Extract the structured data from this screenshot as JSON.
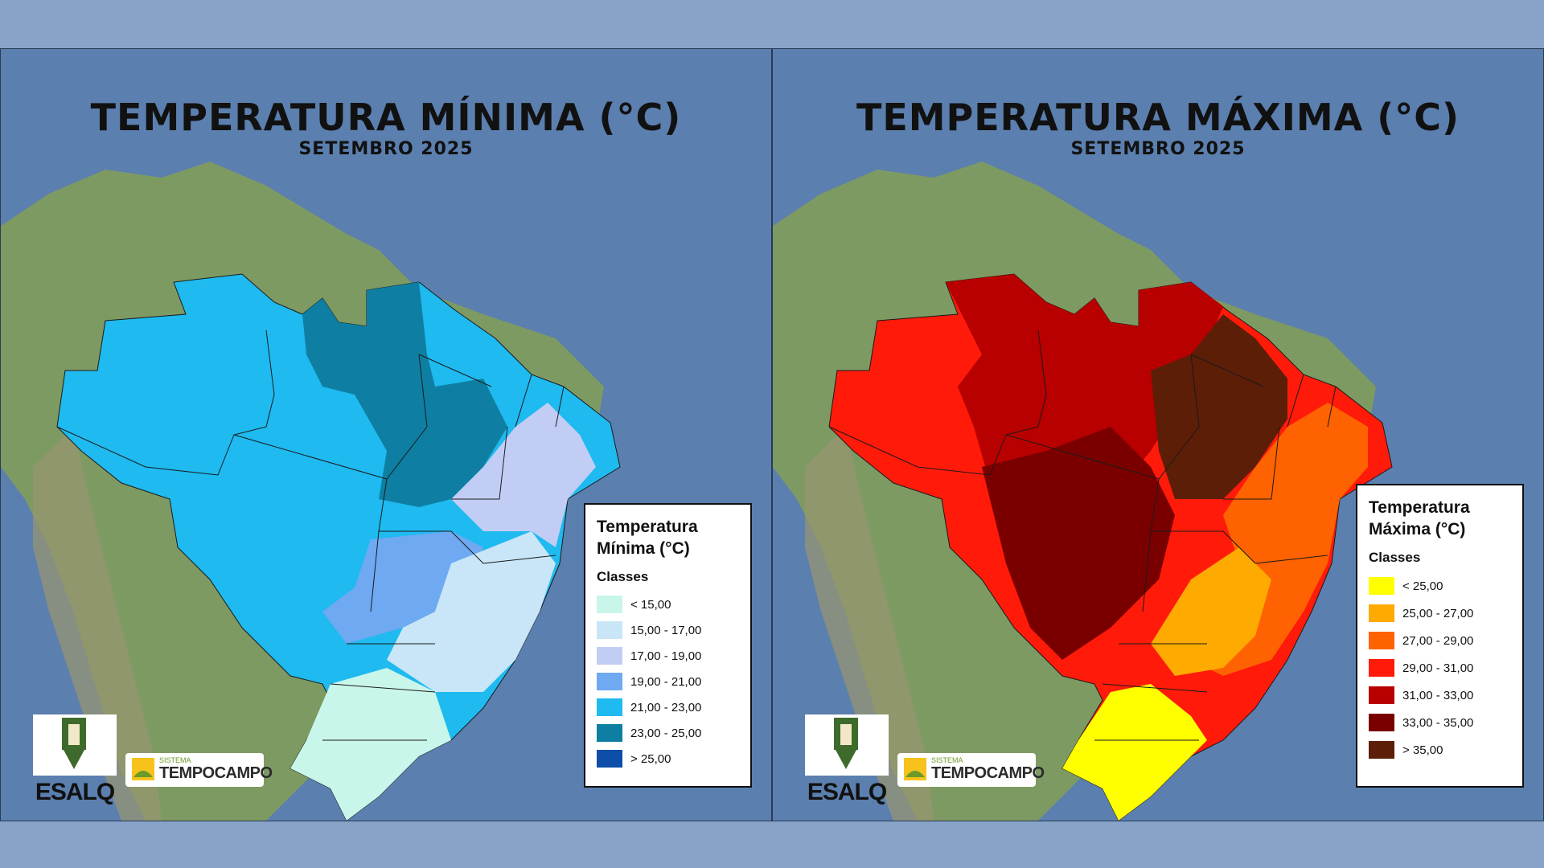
{
  "panels": [
    {
      "title": "TEMPERATURA MÍNIMA (°C)",
      "subtitle": "SETEMBRO 2025",
      "legend": {
        "title": "Temperatura Mínima (°C)",
        "classes_label": "Classes",
        "items": [
          {
            "label": "< 15,00",
            "color": "#c9f6ea"
          },
          {
            "label": "15,00 - 17,00",
            "color": "#c8e6f7"
          },
          {
            "label": "17,00 - 19,00",
            "color": "#c2cdf6"
          },
          {
            "label": "19,00 - 21,00",
            "color": "#6ea9f2"
          },
          {
            "label": "21,00 - 23,00",
            "color": "#1ebaf0"
          },
          {
            "label": "23,00 - 25,00",
            "color": "#0e7fa2"
          },
          {
            "label": "> 25,00",
            "color": "#0c4ea8"
          }
        ]
      }
    },
    {
      "title": "TEMPERATURA MÁXIMA (°C)",
      "subtitle": "SETEMBRO 2025",
      "legend": {
        "title": "Temperatura Máxima (°C)",
        "classes_label": "Classes",
        "items": [
          {
            "label": "< 25,00",
            "color": "#ffff00"
          },
          {
            "label": "25,00 - 27,00",
            "color": "#ffaa00"
          },
          {
            "label": "27,00 - 29,00",
            "color": "#ff6200"
          },
          {
            "label": "29,00 - 31,00",
            "color": "#ff1a0a"
          },
          {
            "label": "31,00 - 33,00",
            "color": "#b80000"
          },
          {
            "label": "33,00 - 35,00",
            "color": "#7a0000"
          },
          {
            "label": "> 35,00",
            "color": "#5c1e07"
          }
        ]
      }
    }
  ],
  "logos": {
    "esalq": "ESALQ",
    "tempocampo_small": "SISTEMA",
    "tempocampo_big": "TEMPOCAMPO"
  }
}
